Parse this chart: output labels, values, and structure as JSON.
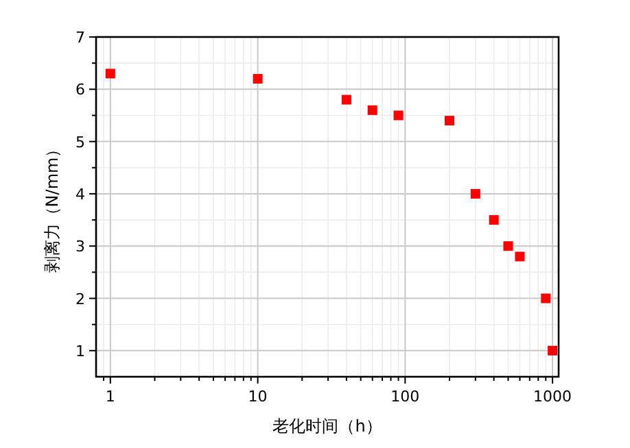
{
  "chart_data": {
    "type": "scatter",
    "xlabel": "老化时间（h）",
    "ylabel": "剥离力（N/mm）",
    "x": [
      1,
      10,
      40,
      60,
      90,
      200,
      300,
      400,
      500,
      600,
      900,
      1000
    ],
    "values": [
      6.3,
      6.2,
      5.8,
      5.6,
      5.5,
      5.4,
      4.0,
      3.5,
      3.0,
      2.8,
      2.0,
      1.0
    ],
    "color": "#ff0000",
    "marker": "square",
    "log": "x",
    "grid": true,
    "xlim": [
      0.8,
      1100
    ],
    "ylim": [
      0.5,
      7
    ],
    "xticks": [
      1,
      10,
      100,
      1000
    ],
    "yticks": [
      1,
      2,
      3,
      4,
      5,
      6,
      7
    ]
  }
}
